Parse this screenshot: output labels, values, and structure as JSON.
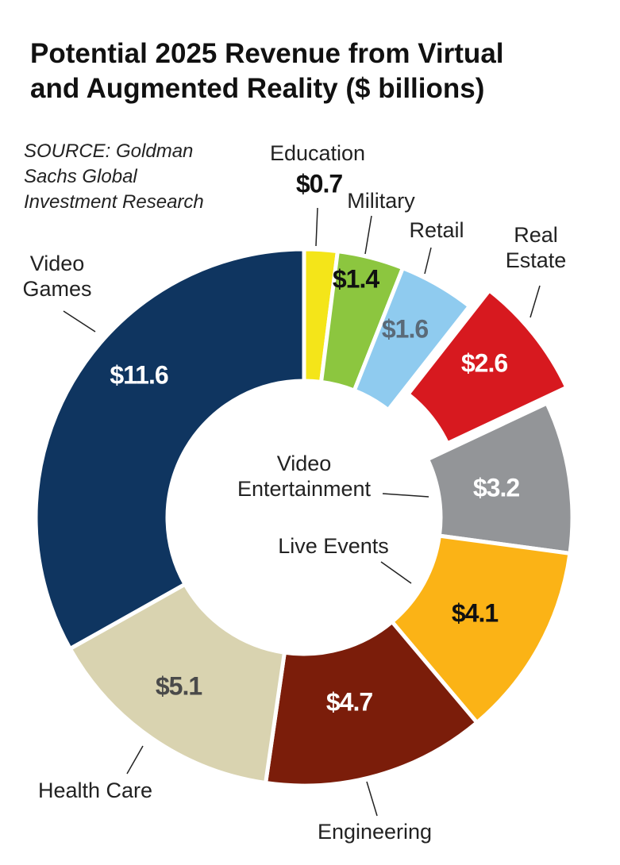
{
  "chart_data": {
    "type": "donut",
    "title": "Potential 2025 Revenue from Virtual and Augmented Reality ($ billions)",
    "source": "SOURCE: Goldman Sachs Global Investment Research",
    "categories": [
      "Education",
      "Military",
      "Retail",
      "Real Estate",
      "Video Entertainment",
      "Live Events",
      "Engineering",
      "Health Care",
      "Video Games"
    ],
    "values": [
      0.7,
      1.4,
      1.6,
      2.6,
      3.2,
      4.1,
      4.7,
      5.1,
      11.6
    ],
    "value_labels": [
      "$0.7",
      "$1.4",
      "$1.6",
      "$2.6",
      "$3.2",
      "$4.1",
      "$4.7",
      "$5.1",
      "$11.6"
    ],
    "colors": [
      "#f4e519",
      "#8cc63f",
      "#8fcbef",
      "#d7191f",
      "#939598",
      "#fbb316",
      "#7b1d0a",
      "#d9d3b0",
      "#0f3560"
    ]
  }
}
